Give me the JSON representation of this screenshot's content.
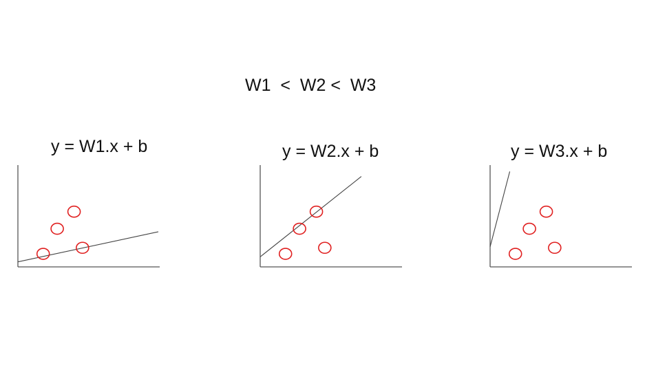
{
  "headline": "W1  <  W2 <  W3",
  "colors": {
    "points": "#e02020",
    "axes": "#555555",
    "fit_line": "#444444",
    "text": "#111111"
  },
  "panels": [
    {
      "equation": "y = W1.x + b",
      "points": [
        [
          0.18,
          0.13
        ],
        [
          0.28,
          0.38
        ],
        [
          0.4,
          0.55
        ],
        [
          0.46,
          0.19
        ]
      ],
      "line": [
        [
          0.0,
          0.05
        ],
        [
          1.0,
          0.35
        ]
      ]
    },
    {
      "equation": "y = W2.x + b",
      "points": [
        [
          0.18,
          0.13
        ],
        [
          0.28,
          0.38
        ],
        [
          0.4,
          0.55
        ],
        [
          0.46,
          0.19
        ]
      ],
      "line": [
        [
          0.0,
          0.1
        ],
        [
          0.72,
          0.9
        ]
      ]
    },
    {
      "equation": "y = W3.x + b",
      "points": [
        [
          0.18,
          0.13
        ],
        [
          0.28,
          0.38
        ],
        [
          0.4,
          0.55
        ],
        [
          0.46,
          0.19
        ]
      ],
      "line": [
        [
          0.0,
          0.2
        ],
        [
          0.14,
          0.95
        ]
      ]
    }
  ]
}
